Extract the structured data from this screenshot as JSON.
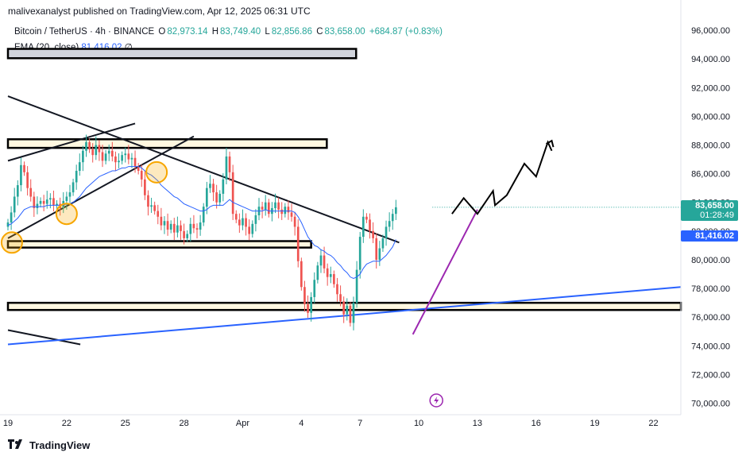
{
  "publisher_text": "malivexanalyst published on TradingView.com, Apr 12, 2025 06:31 UTC",
  "legend": {
    "symbol": "Bitcoin / TetherUS · 4h · BINANCE",
    "open_label": "O",
    "open": "82,973.14",
    "high_label": "H",
    "high": "83,749.40",
    "low_label": "L",
    "low": "82,856.86",
    "close_label": "C",
    "close": "83,658.00",
    "change": "+684.87 (+0.83%)",
    "ema_label": "EMA (20, close)",
    "ema_value": "81,416.02",
    "ema_extra": "∅"
  },
  "price_tags": {
    "last_price": "83,658.00",
    "countdown": "01:28:49",
    "ema_price": "81,416.02"
  },
  "footer_brand": "TradingView",
  "colors": {
    "up": "#26a69a",
    "down": "#ef5350",
    "ema": "#2962ff",
    "zone_fill": "#fff8e1",
    "orange": "#f7a600",
    "purple": "#9c27b0",
    "blue_line": "#2962ff",
    "lightning": "#9c27b0"
  },
  "chart_data": {
    "type": "candlestick",
    "title": "Bitcoin / TetherUS · 4h · BINANCE",
    "y_ticks": [
      "96,000.00",
      "94,000.00",
      "92,000.00",
      "90,000.00",
      "88,000.00",
      "86,000.00",
      "84,000.00",
      "82,000.00",
      "80,000.00",
      "78,000.00",
      "76,000.00",
      "74,000.00",
      "72,000.00",
      "70,000.00"
    ],
    "y_tick_values": [
      96000,
      94000,
      92000,
      90000,
      88000,
      86000,
      84000,
      82000,
      80000,
      78000,
      76000,
      74000,
      72000,
      70000
    ],
    "ylim": [
      69200,
      97000
    ],
    "x_ticks": [
      "19",
      "22",
      "25",
      "28",
      "Apr",
      "4",
      "7",
      "10",
      "13",
      "16",
      "19",
      "22"
    ],
    "x_tick_days": [
      0,
      3,
      6,
      9,
      12,
      15,
      18,
      21,
      24,
      27,
      30,
      33
    ],
    "x_axis_note": "day offsets from Mar 19, 2025",
    "xlim": [
      0,
      34.4
    ],
    "candle_interval_days": 0.16667,
    "candles_start_day": 0,
    "last_price": 83658.0,
    "ema_last": 81416.02,
    "grid": false,
    "closes": [
      82600,
      83300,
      84400,
      85200,
      86600,
      86100,
      85000,
      84400,
      83600,
      83900,
      84100,
      83900,
      84200,
      84300,
      83800,
      83900,
      83600,
      84100,
      84400,
      84700,
      85400,
      86200,
      86800,
      87600,
      88200,
      87700,
      87300,
      88000,
      87500,
      86900,
      87400,
      87600,
      87200,
      86800,
      86900,
      87300,
      87400,
      87000,
      87100,
      86500,
      86200,
      85600,
      84500,
      83700,
      83800,
      83400,
      83000,
      82400,
      82700,
      82100,
      82500,
      81900,
      82400,
      82000,
      81500,
      81800,
      82500,
      82200,
      82100,
      82600,
      83700,
      85000,
      85300,
      84700,
      84000,
      84600,
      85600,
      87200,
      86100,
      83200,
      82800,
      82400,
      82900,
      82300,
      81800,
      82500,
      83100,
      83700,
      83500,
      84000,
      83200,
      83600,
      84000,
      83500,
      83200,
      83700,
      83300,
      83000,
      82300,
      79900,
      78100,
      76900,
      76300,
      77400,
      78600,
      79600,
      80300,
      79400,
      78800,
      79000,
      78300,
      77600,
      77100,
      76200,
      76800,
      75600,
      77000,
      79300,
      81600,
      83000,
      82800,
      82000,
      81500,
      80000,
      80800,
      81500,
      82300,
      82700,
      83200,
      83658
    ],
    "ema_values": [
      82400,
      82500,
      82700,
      82900,
      83200,
      83500,
      83600,
      83700,
      83700,
      83700,
      83700,
      83700,
      83800,
      83800,
      83800,
      83800,
      83800,
      83800,
      83900,
      83900,
      84000,
      84200,
      84400,
      84700,
      85000,
      85200,
      85400,
      85600,
      85800,
      85900,
      86000,
      86100,
      86200,
      86200,
      86300,
      86400,
      86400,
      86500,
      86500,
      86500,
      86500,
      86400,
      86200,
      86000,
      85900,
      85700,
      85500,
      85200,
      85000,
      84800,
      84600,
      84400,
      84300,
      84100,
      83900,
      83800,
      83700,
      83600,
      83500,
      83400,
      83400,
      83500,
      83700,
      83800,
      83800,
      83800,
      83800,
      84000,
      84200,
      84000,
      83900,
      83800,
      83700,
      83600,
      83500,
      83400,
      83400,
      83400,
      83400,
      83500,
      83400,
      83400,
      83400,
      83400,
      83400,
      83400,
      83400,
      83400,
      83300,
      83000,
      82600,
      82100,
      81600,
      81300,
      81000,
      80900,
      80700,
      80600,
      80400,
      80300,
      80100,
      79800,
      79600,
      79300,
      79100,
      78800,
      78700,
      78800,
      79000,
      79400,
      79700,
      79800,
      79900,
      79900,
      79900,
      80100,
      80300,
      80600,
      80900,
      81416
    ],
    "horizontal_zones": [
      {
        "top": 94700,
        "bottom": 94050,
        "start_day": 0,
        "end_day": 17.8
      },
      {
        "top": 88400,
        "bottom": 87800,
        "start_day": 0,
        "end_day": 16.3
      },
      {
        "top": 81300,
        "bottom": 80850,
        "start_day": 0,
        "end_day": 15.5
      },
      {
        "top": 77000,
        "bottom": 76500,
        "start_day": 0,
        "end_day": 34.4
      }
    ],
    "trend_lines": [
      {
        "name": "descending resistance",
        "x1": 0,
        "y1": 91400,
        "x2": 20.0,
        "y2": 81200,
        "color": "#131722"
      },
      {
        "name": "rising support",
        "x1": 0,
        "y1": 81500,
        "x2": 9.5,
        "y2": 88600,
        "color": "#131722"
      },
      {
        "name": "upper channel",
        "x1": 0,
        "y1": 86900,
        "x2": 6.5,
        "y2": 89500,
        "color": "#131722"
      },
      {
        "name": "lower left line",
        "x1": 0,
        "y1": 75100,
        "x2": 3.7,
        "y2": 74100,
        "color": "#131722"
      },
      {
        "name": "blue long-term support",
        "x1": 0,
        "y1": 74100,
        "x2": 34.4,
        "y2": 78100,
        "color": "#2962ff"
      },
      {
        "name": "purple rising trendline",
        "x1": 20.7,
        "y1": 74800,
        "x2": 24.0,
        "y2": 83500,
        "color": "#9c27b0"
      }
    ],
    "projection_path": [
      [
        22.7,
        83200
      ],
      [
        23.3,
        84300
      ],
      [
        24.0,
        83200
      ],
      [
        24.8,
        84800
      ],
      [
        24.9,
        83800
      ],
      [
        25.5,
        84500
      ],
      [
        26.4,
        86700
      ],
      [
        27.0,
        85800
      ],
      [
        27.6,
        88200
      ],
      [
        27.8,
        87600
      ]
    ],
    "projection_arrow_tip": [
      27.8,
      88300
    ],
    "highlight_markers": [
      {
        "day": 3.0,
        "price": 83200
      },
      {
        "day": 7.6,
        "price": 86100
      },
      {
        "day": 0.2,
        "price": 81200
      }
    ]
  }
}
